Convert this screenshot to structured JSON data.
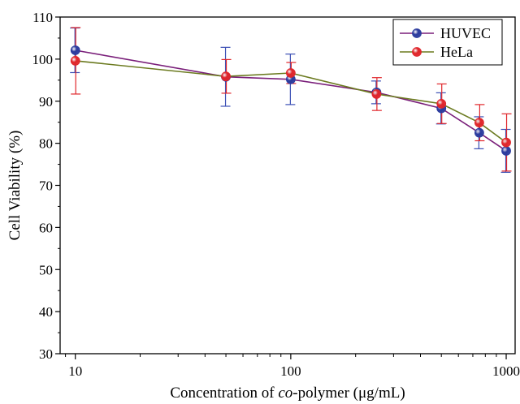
{
  "chart_data": {
    "type": "line",
    "xscale": "log",
    "x": [
      10,
      50,
      100,
      250,
      500,
      750,
      1000
    ],
    "xlim": [
      8.5,
      1100
    ],
    "ylim": [
      30,
      110
    ],
    "xticks": [
      10,
      100,
      1000
    ],
    "xtick_labels": [
      "10",
      "100",
      "1000"
    ],
    "yticks": [
      30,
      40,
      50,
      60,
      70,
      80,
      90,
      100,
      110
    ],
    "ytick_labels": [
      "30",
      "40",
      "50",
      "60",
      "70",
      "80",
      "90",
      "100",
      "110"
    ],
    "xlabel_parts": [
      "Concentration of ",
      "co",
      "-polymer (μg/mL)"
    ],
    "ylabel": "Cell Viability (%)",
    "legend_position": "top-right",
    "series": [
      {
        "name": "HUVEC",
        "line_color": "#7a1f7a",
        "marker_color": "#2b3b9e",
        "errorbar_color": "#3b4fb5",
        "values": [
          102.1,
          95.8,
          95.2,
          92.1,
          88.3,
          82.5,
          78.2
        ],
        "errors": [
          5.3,
          7.0,
          6.0,
          2.7,
          3.7,
          3.8,
          5.1
        ]
      },
      {
        "name": "HeLa",
        "line_color": "#6b7a1f",
        "marker_color": "#e0262b",
        "errorbar_color": "#e0262b",
        "values": [
          99.6,
          95.9,
          96.7,
          91.7,
          89.4,
          84.9,
          80.2
        ],
        "errors": [
          7.9,
          4.0,
          2.5,
          3.9,
          4.7,
          4.3,
          6.8
        ]
      }
    ]
  }
}
